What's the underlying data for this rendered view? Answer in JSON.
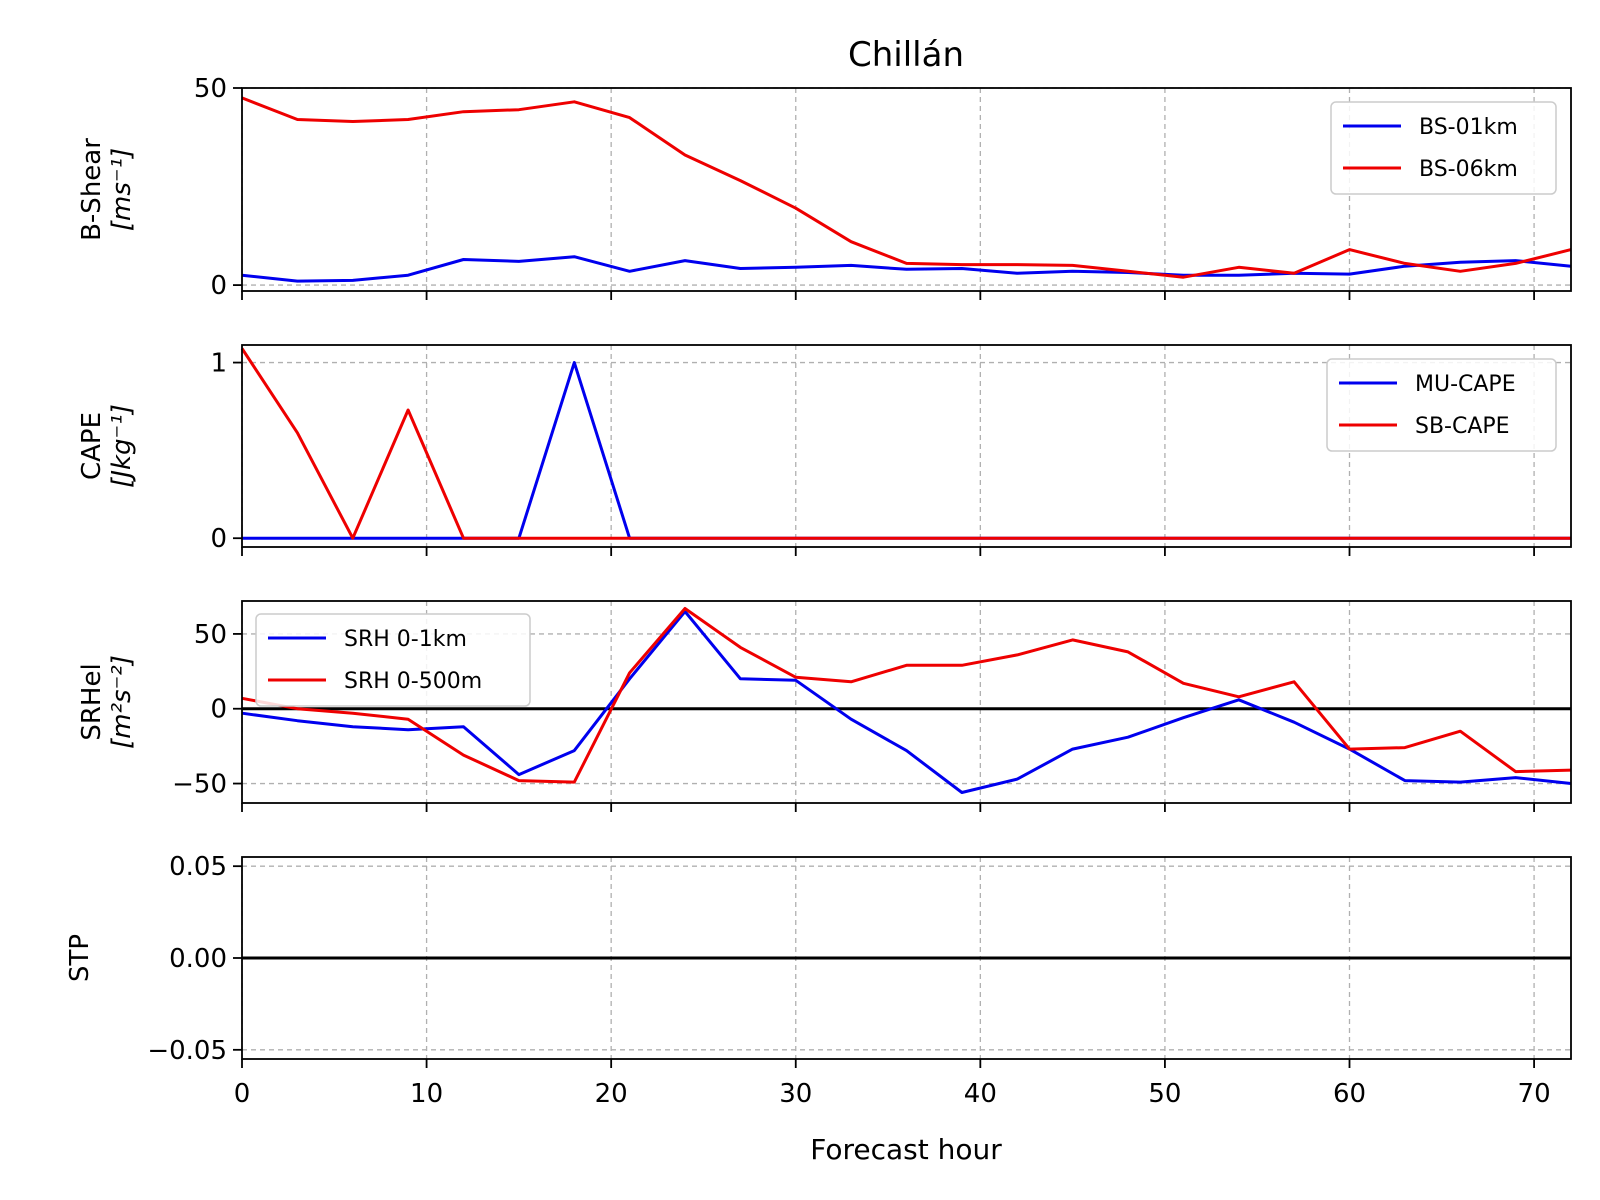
{
  "figure": {
    "title": "Chillán",
    "xlabel": "Forecast hour"
  },
  "colors": {
    "blue": "#0000ee",
    "red": "#ee0000",
    "grid": "#b0b0b0",
    "zero_line": "#000000"
  },
  "chart_data": [
    {
      "type": "line",
      "title": "Chillán",
      "ylabel_line1": "B-Shear",
      "ylabel_line2": "[ms⁻¹]",
      "xlim": [
        0,
        72
      ],
      "ylim": [
        -1.5,
        50
      ],
      "yticks": [
        0,
        50
      ],
      "ytick_labels": [
        "0",
        "50"
      ],
      "xticks": [
        0,
        10,
        20,
        30,
        40,
        50,
        60,
        70
      ],
      "grid": true,
      "zero_line": false,
      "legend_position": "top-right",
      "x": [
        0,
        3,
        6,
        9,
        12,
        15,
        18,
        21,
        24,
        27,
        30,
        33,
        36,
        39,
        42,
        45,
        48,
        51,
        54,
        57,
        60,
        63,
        66,
        69,
        72
      ],
      "series": [
        {
          "name": "BS-01km",
          "color": "#0000ee",
          "values": [
            2.5,
            1,
            1.2,
            2.5,
            6.5,
            6,
            7.2,
            3.5,
            6.2,
            4.2,
            4.5,
            5,
            4,
            4.2,
            3,
            3.5,
            3.2,
            2.5,
            2.5,
            3,
            2.8,
            4.8,
            5.8,
            6.2,
            4.8
          ]
        },
        {
          "name": "BS-06km",
          "color": "#ee0000",
          "values": [
            47.5,
            42,
            41.5,
            42,
            44,
            44.5,
            46.5,
            42.5,
            33,
            26.5,
            19.5,
            11,
            5.5,
            5.2,
            5.2,
            5,
            3.5,
            2,
            4.5,
            3,
            9,
            5.5,
            3.5,
            5.5,
            9
          ]
        }
      ]
    },
    {
      "type": "line",
      "ylabel_line1": "CAPE",
      "ylabel_line2": "[Jkg⁻¹]",
      "xlim": [
        0,
        72
      ],
      "ylim": [
        -0.05,
        1.1
      ],
      "yticks": [
        0,
        1
      ],
      "ytick_labels": [
        "0",
        "1"
      ],
      "xticks": [
        0,
        10,
        20,
        30,
        40,
        50,
        60,
        70
      ],
      "grid": true,
      "zero_line": false,
      "legend_position": "top-right",
      "x": [
        0,
        3,
        6,
        9,
        12,
        15,
        18,
        21,
        24,
        27,
        30,
        33,
        36,
        39,
        42,
        45,
        48,
        51,
        54,
        57,
        60,
        63,
        66,
        69,
        72
      ],
      "series": [
        {
          "name": "MU-CAPE",
          "color": "#0000ee",
          "values": [
            0,
            0,
            0,
            0,
            0,
            0,
            1,
            0,
            0,
            0,
            0,
            0,
            0,
            0,
            0,
            0,
            0,
            0,
            0,
            0,
            0,
            0,
            0,
            0,
            0
          ]
        },
        {
          "name": "SB-CAPE",
          "color": "#ee0000",
          "values": [
            1.08,
            0.6,
            0,
            0.73,
            0,
            0,
            0,
            0,
            0,
            0,
            0,
            0,
            0,
            0,
            0,
            0,
            0,
            0,
            0,
            0,
            0,
            0,
            0,
            0,
            0
          ]
        }
      ]
    },
    {
      "type": "line",
      "ylabel_line1": "SRHel",
      "ylabel_line2": "[m²s⁻²]",
      "xlim": [
        0,
        72
      ],
      "ylim": [
        -63,
        72
      ],
      "yticks": [
        -50,
        0,
        50
      ],
      "ytick_labels": [
        "−50",
        "0",
        "50"
      ],
      "xticks": [
        0,
        10,
        20,
        30,
        40,
        50,
        60,
        70
      ],
      "grid": true,
      "zero_line": true,
      "legend_position": "top-left",
      "x": [
        0,
        3,
        6,
        9,
        12,
        15,
        18,
        21,
        24,
        27,
        30,
        33,
        36,
        39,
        42,
        45,
        48,
        51,
        54,
        57,
        60,
        63,
        66,
        69,
        72
      ],
      "series": [
        {
          "name": "SRH 0-1km",
          "color": "#0000ee",
          "values": [
            -3,
            -8,
            -12,
            -14,
            -12,
            -44,
            -28,
            20,
            65,
            20,
            19,
            -7,
            -28,
            -56,
            -47,
            -27,
            -19,
            -6,
            6,
            -9,
            -27,
            -48,
            -49,
            -46,
            -50
          ]
        },
        {
          "name": "SRH 0-500m",
          "color": "#ee0000",
          "values": [
            7,
            0,
            -3,
            -7,
            -31,
            -48,
            -49,
            24,
            67,
            41,
            21,
            18,
            29,
            29,
            36,
            46,
            38,
            17,
            8,
            18,
            -27,
            -26,
            -15,
            -42,
            -41
          ]
        }
      ]
    },
    {
      "type": "line",
      "ylabel_line1": "STP",
      "ylabel_line2": "",
      "xlim": [
        0,
        72
      ],
      "ylim": [
        -0.055,
        0.055
      ],
      "yticks": [
        -0.05,
        0,
        0.05
      ],
      "ytick_labels": [
        "−0.05",
        "0.00",
        "0.05"
      ],
      "xticks": [
        0,
        10,
        20,
        30,
        40,
        50,
        60,
        70
      ],
      "xtick_labels": [
        "0",
        "10",
        "20",
        "30",
        "40",
        "50",
        "60",
        "70"
      ],
      "grid": true,
      "zero_line": true,
      "legend_position": "",
      "x": [],
      "series": []
    }
  ]
}
